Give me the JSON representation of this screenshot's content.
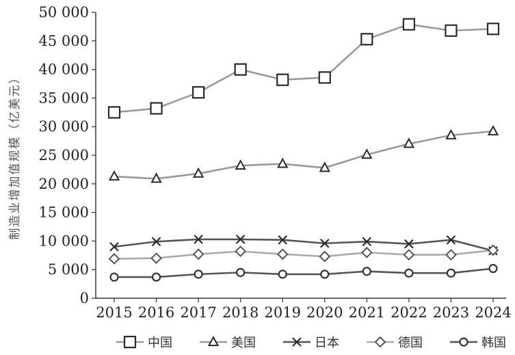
{
  "chart_data": {
    "type": "line",
    "title": "",
    "xlabel": "",
    "ylabel": "制造业增加值规模（亿美元）",
    "x": [
      "2015",
      "2016",
      "2017",
      "2018",
      "2019",
      "2020",
      "2021",
      "2022",
      "2023",
      "2024"
    ],
    "ylim": [
      0,
      50000
    ],
    "yticks": [
      0,
      5000,
      10000,
      15000,
      20000,
      25000,
      30000,
      35000,
      40000,
      45000,
      50000
    ],
    "ytick_labels": [
      "0",
      "5 000",
      "10 000",
      "15 000",
      "20 000",
      "25 000",
      "30 000",
      "35 000",
      "40 000",
      "45 000",
      "50 000"
    ],
    "grid": false,
    "legend_position": "bottom",
    "series": [
      {
        "name": "中国",
        "marker": "square",
        "color": "#2a2a2a",
        "line_color": "#999999",
        "values": [
          32500,
          33200,
          36000,
          40000,
          38200,
          38600,
          45300,
          47900,
          46800,
          47100
        ]
      },
      {
        "name": "美国",
        "marker": "triangle",
        "color": "#2a2a2a",
        "line_color": "#999999",
        "values": [
          21300,
          20900,
          21800,
          23200,
          23500,
          22800,
          25100,
          27000,
          28500,
          29200
        ]
      },
      {
        "name": "日本",
        "marker": "x",
        "color": "#2a2a2a",
        "line_color": "#555555",
        "values": [
          9000,
          9900,
          10300,
          10300,
          10200,
          9600,
          9900,
          9500,
          10200,
          8300
        ]
      },
      {
        "name": "德国",
        "marker": "diamond",
        "color": "#555555",
        "line_color": "#aaaaaa",
        "values": [
          6900,
          7000,
          7700,
          8200,
          7700,
          7300,
          8000,
          7600,
          7600,
          8400
        ]
      },
      {
        "name": "韩国",
        "marker": "circle",
        "color": "#333333",
        "line_color": "#555555",
        "values": [
          3700,
          3700,
          4200,
          4500,
          4200,
          4200,
          4700,
          4400,
          4400,
          5200
        ]
      }
    ]
  }
}
